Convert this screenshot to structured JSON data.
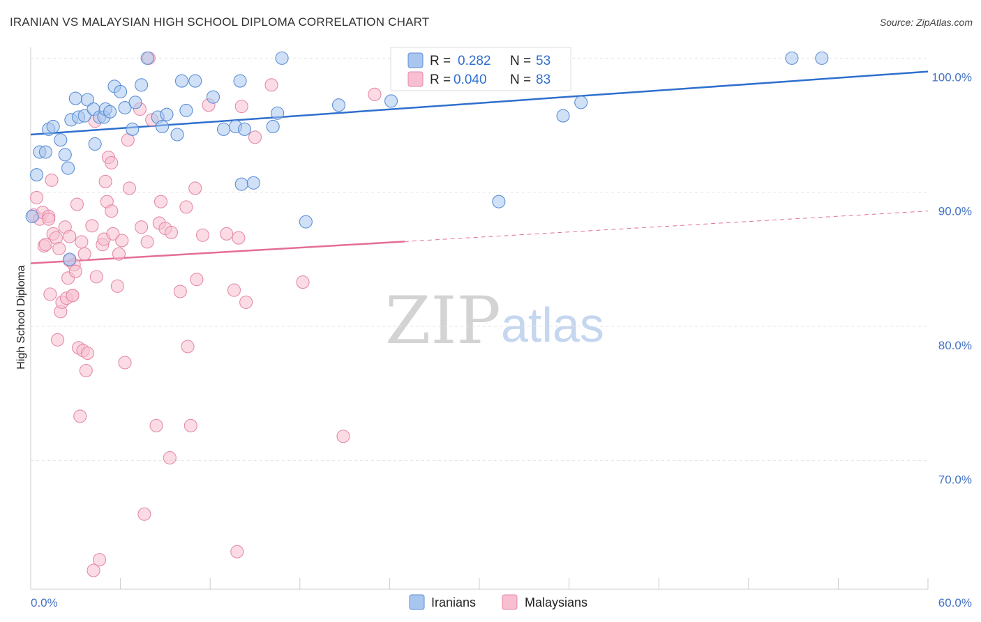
{
  "title": "IRANIAN VS MALAYSIAN HIGH SCHOOL DIPLOMA CORRELATION CHART",
  "source": "Source: ZipAtlas.com",
  "watermark": {
    "zip": "ZIP",
    "atlas": "atlas"
  },
  "legend": {
    "r_label": "R =",
    "n_label": "N =",
    "iranians": {
      "r": "0.282",
      "n": "53"
    },
    "malaysians": {
      "r": "0.040",
      "n": "83"
    }
  },
  "bottom_legend": {
    "iranians": "Iranians",
    "malaysians": "Malaysians"
  },
  "colors": {
    "iranians_fill": "#a9c6ef",
    "iranians_stroke": "#5b8fd6",
    "iranians_line": "#2f6fce",
    "malaysians_fill": "#f7bfd0",
    "malaysians_stroke": "#e58aa8",
    "malaysians_line": "#e46d98",
    "axis_label": "#4472c4",
    "grid": "#e3e3e3"
  },
  "chart_data": {
    "type": "scatter",
    "title": "IRANIAN VS MALAYSIAN HIGH SCHOOL DIPLOMA CORRELATION CHART",
    "xlabel": "",
    "ylabel": "High School Diploma",
    "xlim": [
      0,
      60
    ],
    "ylim": [
      60.4,
      100.8
    ],
    "x_tick_labels": [
      "0.0%",
      "60.0%"
    ],
    "y_ticks": [
      70,
      80,
      90,
      100
    ],
    "y_tick_labels": [
      "70.0%",
      "80.0%",
      "90.0%",
      "100.0%"
    ],
    "grid": true,
    "legend_position": "top-center",
    "series": [
      {
        "name": "Iranians",
        "r": 0.282,
        "n": 53,
        "trend": {
          "x": [
            0,
            60
          ],
          "y": [
            94.3,
            99.0
          ],
          "dashed_from": null
        },
        "points": [
          [
            0.1,
            88.2
          ],
          [
            0.4,
            91.3
          ],
          [
            0.6,
            93.0
          ],
          [
            1.0,
            93.0
          ],
          [
            1.2,
            94.7
          ],
          [
            1.5,
            94.9
          ],
          [
            2.0,
            93.9
          ],
          [
            2.3,
            92.8
          ],
          [
            2.5,
            91.8
          ],
          [
            2.7,
            95.4
          ],
          [
            2.6,
            85.0
          ],
          [
            3.0,
            97.0
          ],
          [
            3.2,
            95.6
          ],
          [
            3.6,
            95.7
          ],
          [
            3.8,
            96.9
          ],
          [
            4.2,
            96.2
          ],
          [
            4.3,
            93.6
          ],
          [
            4.6,
            95.6
          ],
          [
            4.9,
            95.6
          ],
          [
            5.0,
            96.2
          ],
          [
            5.3,
            96.0
          ],
          [
            5.6,
            97.9
          ],
          [
            6.0,
            97.5
          ],
          [
            6.3,
            96.3
          ],
          [
            6.8,
            94.7
          ],
          [
            7.0,
            96.7
          ],
          [
            7.4,
            98.0
          ],
          [
            7.8,
            100.0
          ],
          [
            8.5,
            95.6
          ],
          [
            8.8,
            94.9
          ],
          [
            9.1,
            95.8
          ],
          [
            9.8,
            94.3
          ],
          [
            10.1,
            98.3
          ],
          [
            10.4,
            96.1
          ],
          [
            11.0,
            98.3
          ],
          [
            12.2,
            97.1
          ],
          [
            12.9,
            94.7
          ],
          [
            13.7,
            94.9
          ],
          [
            14.0,
            98.3
          ],
          [
            14.1,
            90.6
          ],
          [
            14.3,
            94.7
          ],
          [
            14.9,
            90.7
          ],
          [
            16.2,
            94.9
          ],
          [
            16.5,
            95.9
          ],
          [
            16.8,
            100.0
          ],
          [
            18.4,
            87.8
          ],
          [
            20.6,
            96.5
          ],
          [
            24.1,
            96.8
          ],
          [
            31.3,
            89.3
          ],
          [
            35.6,
            95.7
          ],
          [
            36.8,
            96.7
          ],
          [
            50.9,
            100.0
          ],
          [
            52.9,
            100.0
          ]
        ]
      },
      {
        "name": "Malaysians",
        "r": 0.04,
        "n": 83,
        "trend": {
          "x": [
            0,
            60
          ],
          "y": [
            84.7,
            88.6
          ],
          "dashed_from": 25
        },
        "points": [
          [
            0.2,
            88.3
          ],
          [
            0.4,
            89.6
          ],
          [
            0.6,
            88.0
          ],
          [
            0.8,
            88.5
          ],
          [
            0.9,
            86.0
          ],
          [
            1.0,
            86.1
          ],
          [
            1.2,
            88.2
          ],
          [
            1.3,
            82.4
          ],
          [
            1.4,
            90.9
          ],
          [
            1.5,
            86.9
          ],
          [
            1.7,
            86.6
          ],
          [
            1.8,
            79.0
          ],
          [
            1.9,
            85.8
          ],
          [
            2.0,
            81.1
          ],
          [
            2.1,
            81.8
          ],
          [
            2.3,
            87.4
          ],
          [
            2.4,
            82.1
          ],
          [
            2.5,
            83.6
          ],
          [
            2.6,
            84.9
          ],
          [
            2.8,
            82.3
          ],
          [
            2.8,
            82.3
          ],
          [
            2.9,
            84.6
          ],
          [
            3.0,
            84.1
          ],
          [
            3.1,
            89.1
          ],
          [
            3.2,
            78.4
          ],
          [
            3.3,
            73.3
          ],
          [
            3.4,
            86.3
          ],
          [
            3.5,
            78.2
          ],
          [
            3.6,
            85.4
          ],
          [
            3.7,
            76.7
          ],
          [
            3.8,
            78.0
          ],
          [
            4.1,
            87.5
          ],
          [
            4.3,
            95.3
          ],
          [
            4.4,
            83.7
          ],
          [
            4.6,
            62.6
          ],
          [
            4.8,
            86.1
          ],
          [
            4.9,
            86.5
          ],
          [
            5.0,
            90.8
          ],
          [
            5.1,
            89.3
          ],
          [
            5.2,
            92.6
          ],
          [
            5.4,
            92.2
          ],
          [
            5.4,
            88.6
          ],
          [
            5.5,
            86.9
          ],
          [
            5.8,
            83.0
          ],
          [
            5.9,
            85.4
          ],
          [
            6.1,
            86.4
          ],
          [
            6.3,
            77.3
          ],
          [
            6.5,
            93.9
          ],
          [
            6.6,
            90.3
          ],
          [
            7.3,
            96.2
          ],
          [
            7.4,
            87.4
          ],
          [
            7.6,
            66.0
          ],
          [
            7.8,
            86.3
          ],
          [
            7.9,
            100.0
          ],
          [
            8.1,
            95.4
          ],
          [
            8.4,
            72.6
          ],
          [
            8.6,
            87.7
          ],
          [
            8.7,
            89.3
          ],
          [
            9.0,
            87.3
          ],
          [
            9.3,
            70.2
          ],
          [
            9.4,
            87.0
          ],
          [
            10.0,
            82.6
          ],
          [
            10.4,
            88.9
          ],
          [
            10.5,
            78.5
          ],
          [
            10.7,
            72.6
          ],
          [
            11.0,
            90.3
          ],
          [
            11.1,
            83.5
          ],
          [
            11.5,
            86.8
          ],
          [
            11.9,
            96.5
          ],
          [
            13.1,
            86.9
          ],
          [
            13.6,
            82.7
          ],
          [
            13.8,
            63.2
          ],
          [
            14.1,
            96.4
          ],
          [
            14.4,
            81.8
          ],
          [
            15.0,
            94.1
          ],
          [
            16.1,
            98.0
          ],
          [
            18.2,
            83.3
          ],
          [
            20.9,
            71.8
          ],
          [
            23.0,
            97.3
          ],
          [
            4.2,
            61.8
          ],
          [
            1.2,
            88.0
          ],
          [
            2.6,
            86.7
          ],
          [
            13.9,
            86.6
          ]
        ]
      }
    ]
  }
}
